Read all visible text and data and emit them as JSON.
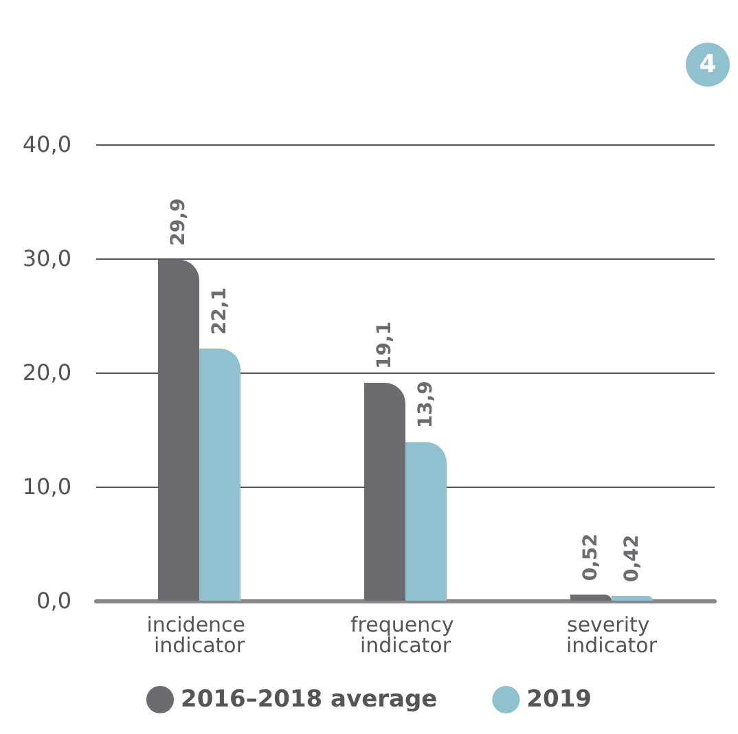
{
  "chart_data": {
    "type": "bar",
    "categories": [
      "incidence indicator",
      "frequency indicator",
      "severity indicator"
    ],
    "series": [
      {
        "name": "2016–2018 average",
        "color": "#6b6b70",
        "values": [
          29.9,
          19.1,
          0.52
        ],
        "value_labels": [
          "29,9",
          "19,1",
          "0,52"
        ]
      },
      {
        "name": "2019",
        "color": "#8fc1ce",
        "values": [
          22.1,
          13.9,
          0.42
        ],
        "value_labels": [
          "22,1",
          "13,9",
          "0,42"
        ]
      }
    ],
    "ylim": [
      0,
      40
    ],
    "yticks": [
      {
        "value": 0,
        "label": "0,0"
      },
      {
        "value": 10,
        "label": "10,0"
      },
      {
        "value": 20,
        "label": "20,0"
      },
      {
        "value": 30,
        "label": "30,0"
      },
      {
        "value": 40,
        "label": "40,0"
      }
    ],
    "grid": "y",
    "legend": "bottom",
    "annotations": [
      "4"
    ]
  }
}
